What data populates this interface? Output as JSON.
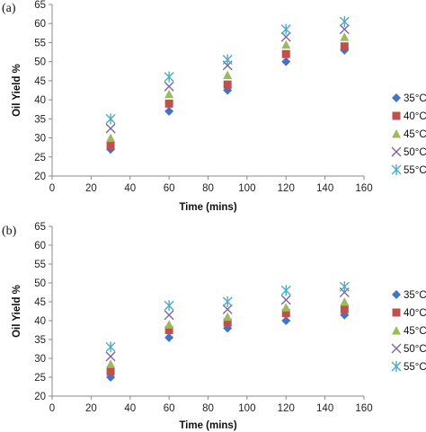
{
  "chart_data": [
    {
      "type": "scatter",
      "panel_label": "(a)",
      "xlabel": "Time (mins)",
      "ylabel": "Oil Yield %",
      "xlim": [
        0,
        160
      ],
      "ylim": [
        20,
        65
      ],
      "xticks": [
        0,
        20,
        40,
        60,
        80,
        100,
        120,
        140,
        160
      ],
      "yticks": [
        20,
        25,
        30,
        35,
        40,
        45,
        50,
        55,
        60,
        65
      ],
      "grid": false,
      "legend_position": "right",
      "x": [
        30,
        60,
        90,
        120,
        150
      ],
      "series": [
        {
          "name": "35°C",
          "marker": "diamond",
          "color": "#4472C4",
          "values": [
            27.0,
            37.0,
            42.5,
            50.0,
            53.0
          ]
        },
        {
          "name": "40°C",
          "marker": "square",
          "color": "#C0504D",
          "values": [
            28.0,
            39.0,
            44.0,
            52.0,
            54.0
          ]
        },
        {
          "name": "45°C",
          "marker": "triangle",
          "color": "#9BBB59",
          "values": [
            30.0,
            41.5,
            46.5,
            54.5,
            56.5
          ]
        },
        {
          "name": "50°C",
          "marker": "x",
          "color": "#8064A2",
          "values": [
            32.5,
            43.5,
            49.0,
            56.5,
            58.5
          ]
        },
        {
          "name": "55°C",
          "marker": "star",
          "color": "#4BACC6",
          "values": [
            35.0,
            46.0,
            50.5,
            58.5,
            60.5
          ]
        }
      ]
    },
    {
      "type": "scatter",
      "panel_label": "(b)",
      "xlabel": "Time (mins)",
      "ylabel": "Oil Yield %",
      "xlim": [
        0,
        160
      ],
      "ylim": [
        20,
        65
      ],
      "xticks": [
        0,
        20,
        40,
        60,
        80,
        100,
        120,
        140,
        160
      ],
      "yticks": [
        20,
        25,
        30,
        35,
        40,
        45,
        50,
        55,
        60,
        65
      ],
      "grid": false,
      "legend_position": "right",
      "x": [
        30,
        60,
        90,
        120,
        150
      ],
      "series": [
        {
          "name": "35°C",
          "marker": "diamond",
          "color": "#4472C4",
          "values": [
            25.0,
            35.5,
            38.0,
            40.0,
            41.5
          ]
        },
        {
          "name": "40°C",
          "marker": "square",
          "color": "#C0504D",
          "values": [
            26.5,
            37.5,
            39.5,
            42.0,
            43.0
          ]
        },
        {
          "name": "45°C",
          "marker": "triangle",
          "color": "#9BBB59",
          "values": [
            28.5,
            39.0,
            41.0,
            43.5,
            45.0
          ]
        },
        {
          "name": "50°C",
          "marker": "x",
          "color": "#8064A2",
          "values": [
            30.5,
            41.5,
            43.0,
            45.5,
            47.5
          ]
        },
        {
          "name": "55°C",
          "marker": "star",
          "color": "#4BACC6",
          "values": [
            33.0,
            44.0,
            45.0,
            48.0,
            49.0
          ]
        }
      ]
    }
  ]
}
